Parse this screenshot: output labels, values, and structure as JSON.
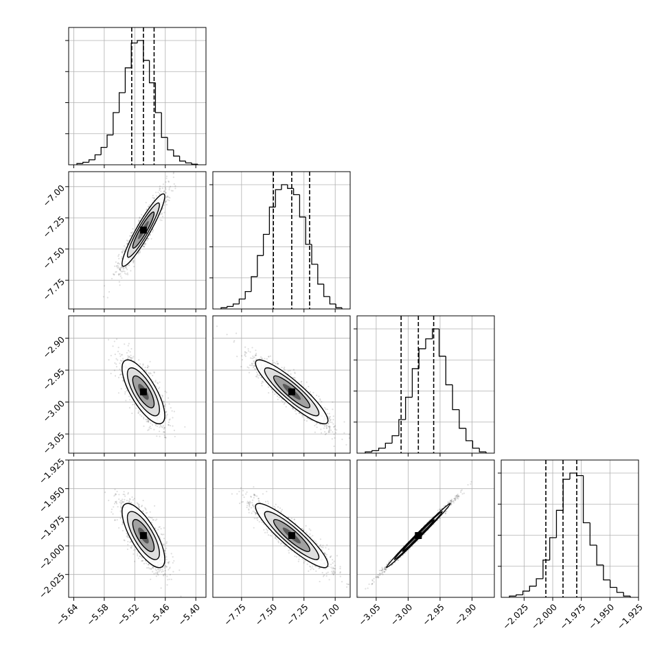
{
  "chart_data": {
    "type": "corner",
    "title": "",
    "params": [
      {
        "lim": [
          -5.65,
          -5.38
        ],
        "hist_max": 1.0,
        "ticks": [
          {
            "v": -5.64,
            "label": "−5.64"
          },
          {
            "v": -5.58,
            "label": "−5.58"
          },
          {
            "v": -5.52,
            "label": "−5.52"
          },
          {
            "v": -5.46,
            "label": "−5.46"
          },
          {
            "v": -5.4,
            "label": "−5.40"
          }
        ],
        "quantiles": [
          -5.526,
          -5.503,
          -5.482
        ],
        "hist": [
          0.01,
          0.02,
          0.04,
          0.08,
          0.14,
          0.24,
          0.42,
          0.58,
          0.78,
          0.98,
          1.0,
          0.84,
          0.66,
          0.42,
          0.22,
          0.12,
          0.07,
          0.03,
          0.015,
          0.005
        ]
      },
      {
        "lim": [
          -7.98,
          -6.88
        ],
        "hist_max": 1.0,
        "ticks": [
          {
            "v": -7.75,
            "label": "−7.75"
          },
          {
            "v": -7.5,
            "label": "−7.50"
          },
          {
            "v": -7.25,
            "label": "−7.25"
          },
          {
            "v": -7.0,
            "label": "−7.00"
          }
        ],
        "quantiles": [
          -7.495,
          -7.348,
          -7.205
        ],
        "hist": [
          0.01,
          0.02,
          0.04,
          0.08,
          0.14,
          0.26,
          0.43,
          0.6,
          0.82,
          0.96,
          1.0,
          0.97,
          0.92,
          0.74,
          0.52,
          0.36,
          0.2,
          0.1,
          0.04,
          0.01
        ]
      },
      {
        "lim": [
          -3.08,
          -2.865
        ],
        "hist_max": 1.0,
        "ticks": [
          {
            "v": -2.9,
            "label": "−2.90"
          },
          {
            "v": -2.95,
            "label": "−2.95"
          },
          {
            "v": -3.0,
            "label": "−3.00"
          },
          {
            "v": -3.05,
            "label": "−3.05"
          }
        ],
        "quantiles": [
          -3.011,
          -2.984,
          -2.96
        ],
        "hist": [
          0.01,
          0.02,
          0.04,
          0.08,
          0.14,
          0.27,
          0.45,
          0.68,
          0.84,
          0.92,
          1.0,
          0.78,
          0.55,
          0.35,
          0.2,
          0.1,
          0.04,
          0.01
        ]
      },
      {
        "lim": [
          -2.045,
          -1.925
        ],
        "ticks": [
          {
            "v": -2.025,
            "label": "−2.025"
          },
          {
            "v": -2.0,
            "label": "−2.000"
          },
          {
            "v": -1.975,
            "label": "−1.975"
          },
          {
            "v": -1.95,
            "label": "−1.950"
          },
          {
            "v": -1.925,
            "label": "−1.925"
          }
        ],
        "ticks_y": [
          {
            "v": -2.025,
            "label": "−2.025"
          },
          {
            "v": -2.0,
            "label": "−2.000"
          },
          {
            "v": -1.975,
            "label": "−1.975"
          },
          {
            "v": -1.95,
            "label": "−1.950"
          },
          {
            "v": -1.925,
            "label": "−1.925"
          }
        ],
        "quantiles": [
          -2.006,
          -1.991,
          -1.979
        ],
        "hist": [
          0.01,
          0.02,
          0.05,
          0.09,
          0.15,
          0.3,
          0.48,
          0.7,
          0.95,
          1.0,
          0.98,
          0.6,
          0.42,
          0.26,
          0.14,
          0.08,
          0.04,
          0.01
        ]
      }
    ],
    "correlations": {
      "1-0": 0.93,
      "2-0": -0.74,
      "2-1": -0.9,
      "3-0": -0.74,
      "3-1": -0.9,
      "3-2": 0.995
    },
    "means": [
      -5.503,
      -7.348,
      -2.984,
      -1.991
    ],
    "sigmas": [
      0.021,
      0.145,
      0.025,
      0.014
    ],
    "grid": true,
    "colors": {
      "line": "#000000",
      "grid": "#b0b0b0",
      "scatter": "#000000",
      "fill": "#555555"
    }
  }
}
